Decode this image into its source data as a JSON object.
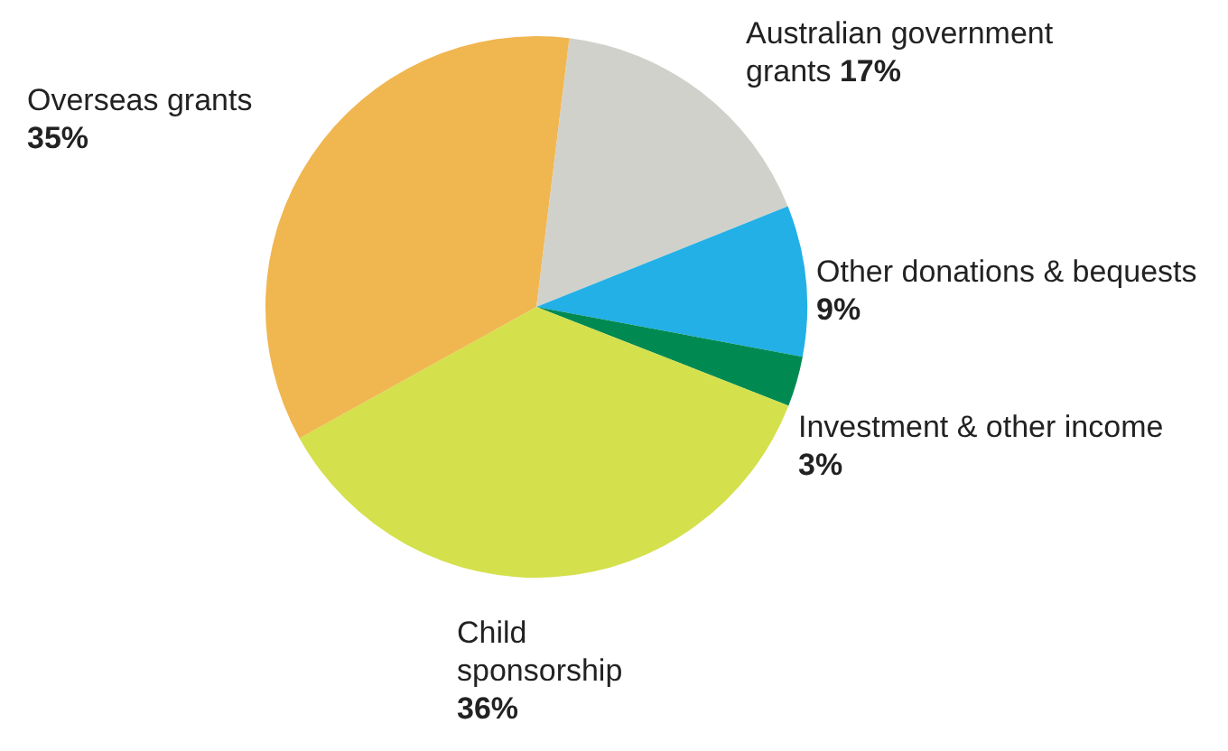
{
  "chart_data": {
    "type": "pie",
    "categories": [
      "Australian government grants",
      "Other donations & bequests",
      "Investment & other income",
      "Child sponsorship",
      "Overseas grants"
    ],
    "values": [
      17,
      9,
      3,
      36,
      35
    ],
    "colors": [
      "#d1d1cc",
      "#22b0e6",
      "#008a52",
      "#d4e04c",
      "#f0b650"
    ],
    "value_labels": [
      "17%",
      "9%",
      "3%",
      "36%",
      "35%"
    ]
  }
}
